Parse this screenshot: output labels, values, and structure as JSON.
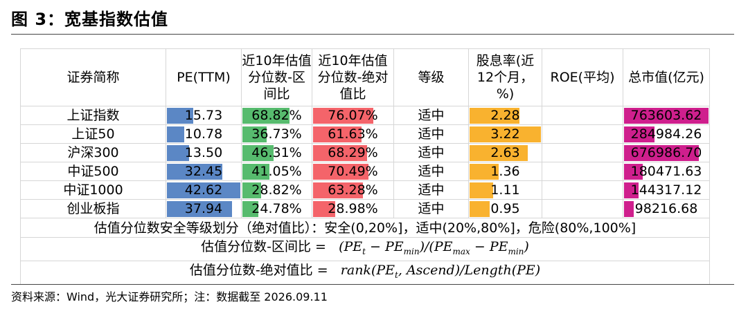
{
  "title": "图 3：宽基指数估值",
  "headers": [
    "证券简称",
    "PE(TTM)",
    "近10年估值分位数-区间比",
    "近10年估值分位数-绝对值比",
    "等级",
    "股息率(近12个月，%)",
    "ROE(平均)",
    "总市值(亿元)"
  ],
  "rows": [
    {
      "name": "上证指数",
      "pe": "15.73",
      "pe_v": 15.73,
      "range": "68.82%",
      "range_v": 68.82,
      "abs": "76.07%",
      "abs_v": 76.07,
      "level": "适中",
      "div": "2.28",
      "div_v": 2.28,
      "roe": "",
      "cap": "763603.62",
      "cap_v": 763603.62
    },
    {
      "name": "上证50",
      "pe": "10.78",
      "pe_v": 10.78,
      "range": "36.73%",
      "range_v": 36.73,
      "abs": "61.63%",
      "abs_v": 61.63,
      "level": "适中",
      "div": "3.22",
      "div_v": 3.22,
      "roe": "",
      "cap": "284984.26",
      "cap_v": 284984.26
    },
    {
      "name": "沪深300",
      "pe": "13.50",
      "pe_v": 13.5,
      "range": "46.31%",
      "range_v": 46.31,
      "abs": "68.29%",
      "abs_v": 68.29,
      "level": "适中",
      "div": "2.63",
      "div_v": 2.63,
      "roe": "",
      "cap": "676986.70",
      "cap_v": 676986.7
    },
    {
      "name": "中证500",
      "pe": "32.45",
      "pe_v": 32.45,
      "range": "41.05%",
      "range_v": 41.05,
      "abs": "70.49%",
      "abs_v": 70.49,
      "level": "适中",
      "div": "1.36",
      "div_v": 1.36,
      "roe": "",
      "cap": "180471.63",
      "cap_v": 180471.63
    },
    {
      "name": "中证1000",
      "pe": "42.62",
      "pe_v": 42.62,
      "range": "28.82%",
      "range_v": 28.82,
      "abs": "63.28%",
      "abs_v": 63.28,
      "level": "适中",
      "div": "1.11",
      "div_v": 1.11,
      "roe": "",
      "cap": "144317.12",
      "cap_v": 144317.12
    },
    {
      "name": "创业板指",
      "pe": "37.94",
      "pe_v": 37.94,
      "range": "24.78%",
      "range_v": 24.78,
      "abs": "28.98%",
      "abs_v": 28.98,
      "level": "适中",
      "div": "0.95",
      "div_v": 0.95,
      "roe": "",
      "cap": "98216.68",
      "cap_v": 98216.68
    }
  ],
  "notes": {
    "grading": "估值分位数安全等级划分（绝对值比）：安全(0,20%]，适中(20%,80%]，危险(80%,100%]",
    "f1_label": "估值分位数-区间比 =",
    "f2_label": "估值分位数-绝对值比 =",
    "f2_expr": "rank(PEt, Ascend)/Length(PE)"
  },
  "source": "资料来源：Wind，光大证券研究所；注：数据截至 2026.09.11",
  "bar_colors": {
    "pe": "#5b87c5",
    "range": "#57bb6e",
    "abs": "#f4646a",
    "div": "#f9b22f",
    "cap": "#cf1f8d"
  }
}
